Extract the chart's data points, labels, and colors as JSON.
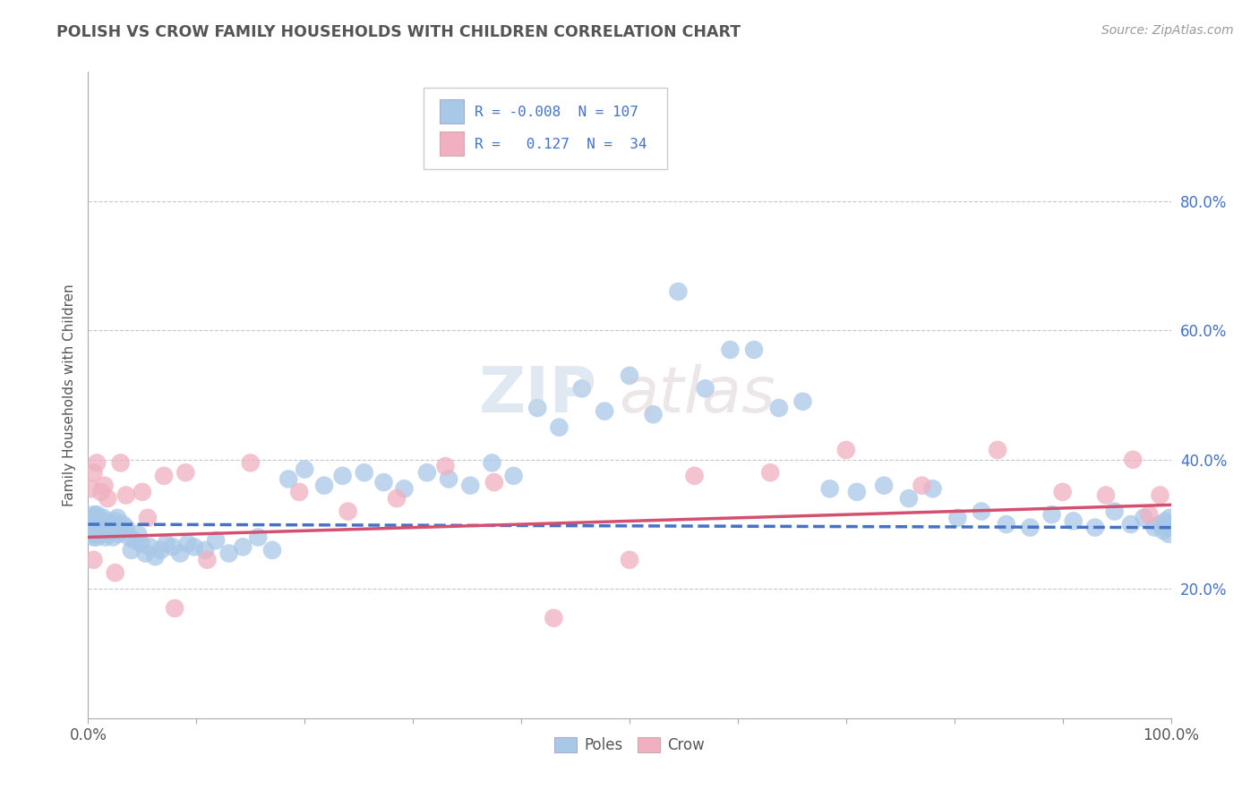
{
  "title": "POLISH VS CROW FAMILY HOUSEHOLDS WITH CHILDREN CORRELATION CHART",
  "source": "Source: ZipAtlas.com",
  "ylabel": "Family Households with Children",
  "legend_labels": [
    "Poles",
    "Crow"
  ],
  "poles_R": -0.008,
  "poles_N": 107,
  "crow_R": 0.127,
  "crow_N": 34,
  "xlim": [
    0.0,
    1.0
  ],
  "ylim": [
    0.0,
    1.0
  ],
  "xticks": [
    0.0,
    0.1,
    0.2,
    0.3,
    0.4,
    0.5,
    0.6,
    0.7,
    0.8,
    0.9,
    1.0
  ],
  "xticklabels": [
    "0.0%",
    "",
    "",
    "",
    "",
    "",
    "",
    "",
    "",
    "",
    "100.0%"
  ],
  "yticks": [
    0.2,
    0.4,
    0.6,
    0.8
  ],
  "yticklabels": [
    "20.0%",
    "40.0%",
    "60.0%",
    "80.0%"
  ],
  "poles_color": "#a8c8e8",
  "crow_color": "#f0b0c0",
  "poles_line_color": "#4472c4",
  "crow_line_color": "#d45070",
  "grid_color": "#c0c8d8",
  "background_color": "#ffffff",
  "watermark_zip": "ZIP",
  "watermark_atlas": "atlas",
  "poles_x": [
    0.002,
    0.003,
    0.003,
    0.004,
    0.004,
    0.005,
    0.005,
    0.005,
    0.006,
    0.006,
    0.006,
    0.007,
    0.007,
    0.007,
    0.008,
    0.008,
    0.008,
    0.009,
    0.009,
    0.01,
    0.01,
    0.011,
    0.011,
    0.012,
    0.013,
    0.014,
    0.015,
    0.016,
    0.017,
    0.018,
    0.019,
    0.02,
    0.022,
    0.023,
    0.025,
    0.027,
    0.028,
    0.03,
    0.032,
    0.035,
    0.038,
    0.04,
    0.043,
    0.046,
    0.049,
    0.053,
    0.057,
    0.062,
    0.067,
    0.072,
    0.078,
    0.085,
    0.092,
    0.098,
    0.108,
    0.118,
    0.13,
    0.143,
    0.157,
    0.17,
    0.185,
    0.2,
    0.218,
    0.235,
    0.255,
    0.273,
    0.292,
    0.313,
    0.333,
    0.353,
    0.373,
    0.393,
    0.415,
    0.435,
    0.456,
    0.477,
    0.5,
    0.522,
    0.545,
    0.57,
    0.593,
    0.615,
    0.638,
    0.66,
    0.685,
    0.71,
    0.735,
    0.758,
    0.78,
    0.803,
    0.825,
    0.848,
    0.87,
    0.89,
    0.91,
    0.93,
    0.948,
    0.963,
    0.975,
    0.985,
    0.99,
    0.993,
    0.995,
    0.997,
    0.998,
    0.999,
    0.999
  ],
  "poles_y": [
    0.3,
    0.295,
    0.31,
    0.285,
    0.305,
    0.28,
    0.295,
    0.315,
    0.29,
    0.3,
    0.31,
    0.285,
    0.295,
    0.305,
    0.28,
    0.3,
    0.315,
    0.29,
    0.3,
    0.285,
    0.305,
    0.29,
    0.295,
    0.3,
    0.285,
    0.31,
    0.295,
    0.28,
    0.305,
    0.29,
    0.285,
    0.3,
    0.295,
    0.28,
    0.305,
    0.31,
    0.285,
    0.29,
    0.3,
    0.295,
    0.28,
    0.26,
    0.275,
    0.285,
    0.27,
    0.255,
    0.265,
    0.25,
    0.26,
    0.27,
    0.265,
    0.255,
    0.27,
    0.265,
    0.26,
    0.275,
    0.255,
    0.265,
    0.28,
    0.26,
    0.37,
    0.385,
    0.36,
    0.375,
    0.38,
    0.365,
    0.355,
    0.38,
    0.37,
    0.36,
    0.395,
    0.375,
    0.48,
    0.45,
    0.51,
    0.475,
    0.53,
    0.47,
    0.66,
    0.51,
    0.57,
    0.57,
    0.48,
    0.49,
    0.355,
    0.35,
    0.36,
    0.34,
    0.355,
    0.31,
    0.32,
    0.3,
    0.295,
    0.315,
    0.305,
    0.295,
    0.32,
    0.3,
    0.31,
    0.295,
    0.3,
    0.29,
    0.305,
    0.295,
    0.285,
    0.31,
    0.3
  ],
  "crow_x": [
    0.003,
    0.005,
    0.008,
    0.012,
    0.018,
    0.025,
    0.035,
    0.05,
    0.07,
    0.09,
    0.005,
    0.015,
    0.03,
    0.055,
    0.08,
    0.11,
    0.15,
    0.195,
    0.24,
    0.285,
    0.33,
    0.375,
    0.43,
    0.5,
    0.56,
    0.63,
    0.7,
    0.77,
    0.84,
    0.9,
    0.94,
    0.965,
    0.98,
    0.99
  ],
  "crow_y": [
    0.355,
    0.245,
    0.395,
    0.35,
    0.34,
    0.225,
    0.345,
    0.35,
    0.375,
    0.38,
    0.38,
    0.36,
    0.395,
    0.31,
    0.17,
    0.245,
    0.395,
    0.35,
    0.32,
    0.34,
    0.39,
    0.365,
    0.155,
    0.245,
    0.375,
    0.38,
    0.415,
    0.36,
    0.415,
    0.35,
    0.345,
    0.4,
    0.315,
    0.345
  ]
}
